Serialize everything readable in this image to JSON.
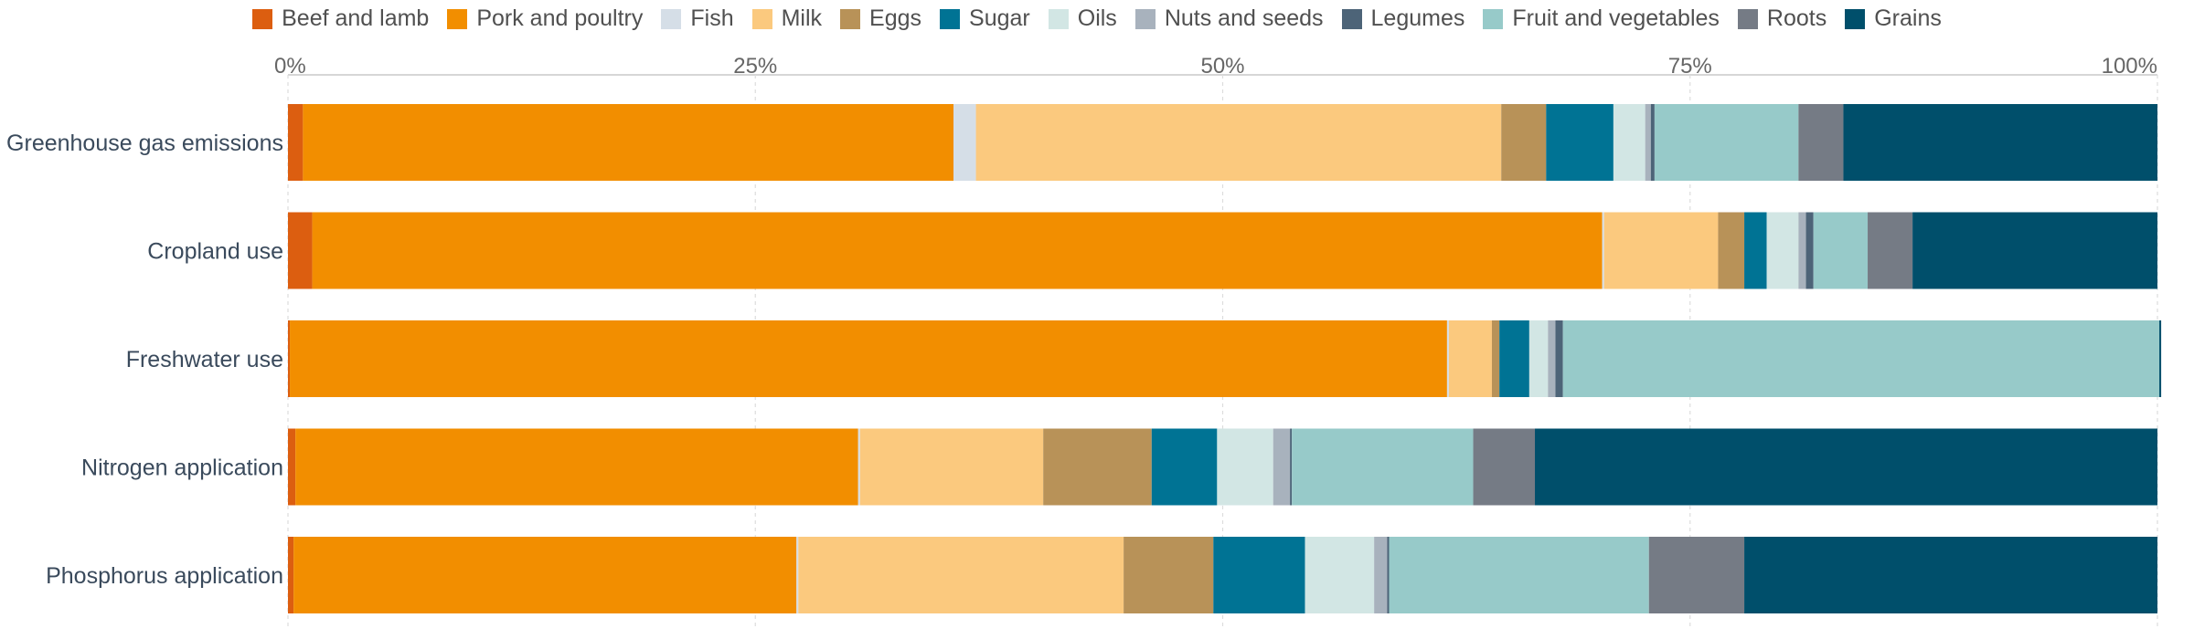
{
  "chart_data": {
    "type": "bar",
    "orientation": "horizontal",
    "stacked": true,
    "title": "",
    "xlabel": "",
    "ylabel": "",
    "xlim": [
      0,
      100
    ],
    "x_ticks": [
      "0%",
      "25%",
      "50%",
      "75%",
      "100%"
    ],
    "x_tick_values": [
      0,
      25,
      50,
      75,
      100
    ],
    "grid": true,
    "legend_position": "top",
    "categories": [
      "Greenhouse gas emissions",
      "Cropland use",
      "Freshwater use",
      "Nitrogen application",
      "Phosphorus application"
    ],
    "series": [
      {
        "name": "Beef and lamb",
        "color": "#dc5e10",
        "values": [
          0.8,
          1.3,
          0.1,
          0.4,
          0.3
        ]
      },
      {
        "name": "Pork and poultry",
        "color": "#f28e00",
        "values": [
          34.8,
          69.0,
          61.9,
          30.1,
          26.9
        ]
      },
      {
        "name": "Fish",
        "color": "#d5dee7",
        "values": [
          1.2,
          0.1,
          0.1,
          0.1,
          0.1
        ]
      },
      {
        "name": "Milk",
        "color": "#fbc97e",
        "values": [
          28.1,
          6.1,
          2.3,
          9.8,
          17.4
        ]
      },
      {
        "name": "Eggs",
        "color": "#b89258",
        "values": [
          2.4,
          1.4,
          0.4,
          5.8,
          4.8
        ]
      },
      {
        "name": "Sugar",
        "color": "#007394",
        "values": [
          3.6,
          1.2,
          1.6,
          3.5,
          4.9
        ]
      },
      {
        "name": "Oils",
        "color": "#d2e6e4",
        "values": [
          1.7,
          1.7,
          1.0,
          3.0,
          3.7
        ]
      },
      {
        "name": "Nuts and seeds",
        "color": "#a8b2bd",
        "values": [
          0.3,
          0.4,
          0.4,
          0.9,
          0.7
        ]
      },
      {
        "name": "Legumes",
        "color": "#4d6478",
        "values": [
          0.2,
          0.4,
          0.4,
          0.1,
          0.1
        ]
      },
      {
        "name": "Fruit and vegetables",
        "color": "#97cac9",
        "values": [
          7.7,
          2.9,
          31.9,
          9.7,
          13.9
        ]
      },
      {
        "name": "Roots",
        "color": "#757b85",
        "values": [
          2.4,
          2.4,
          0.0,
          3.3,
          5.1
        ]
      },
      {
        "name": "Grains",
        "color": "#004f6b",
        "values": [
          16.8,
          13.1,
          0.1,
          33.3,
          22.1
        ]
      }
    ]
  }
}
